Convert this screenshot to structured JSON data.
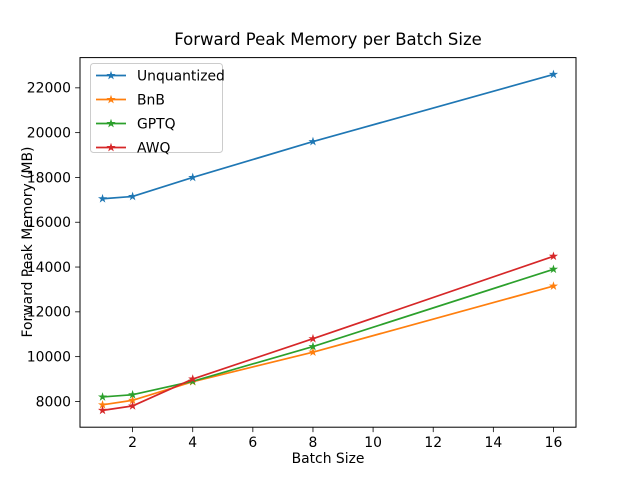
{
  "chart_data": {
    "type": "line",
    "title": "Forward Peak Memory per Batch Size",
    "xlabel": "Batch Size",
    "ylabel": "Forward Peak Memory (MB)",
    "x": [
      1,
      2,
      4,
      8,
      16
    ],
    "series": [
      {
        "name": "Unquantized",
        "color": "#1f77b4",
        "values": [
          17050,
          17150,
          18000,
          19600,
          22600
        ]
      },
      {
        "name": "BnB",
        "color": "#ff7f0e",
        "values": [
          7850,
          8050,
          8880,
          10200,
          13150
        ]
      },
      {
        "name": "GPTQ",
        "color": "#2ca02c",
        "values": [
          8200,
          8300,
          8900,
          10450,
          13900
        ]
      },
      {
        "name": "AWQ",
        "color": "#d62728",
        "values": [
          7600,
          7800,
          9000,
          10800,
          14480
        ]
      }
    ],
    "xticks": [
      2,
      4,
      6,
      8,
      10,
      12,
      14,
      16
    ],
    "yticks": [
      8000,
      10000,
      12000,
      14000,
      16000,
      18000,
      20000,
      22000
    ],
    "xlim": [
      0.25,
      16.75
    ],
    "ylim": [
      6850,
      23350
    ],
    "grid": false,
    "marker": "star",
    "legend_position": "upper left",
    "legend_border_color": "#cccccc",
    "axis_color": "#000000",
    "background": "#ffffff"
  }
}
